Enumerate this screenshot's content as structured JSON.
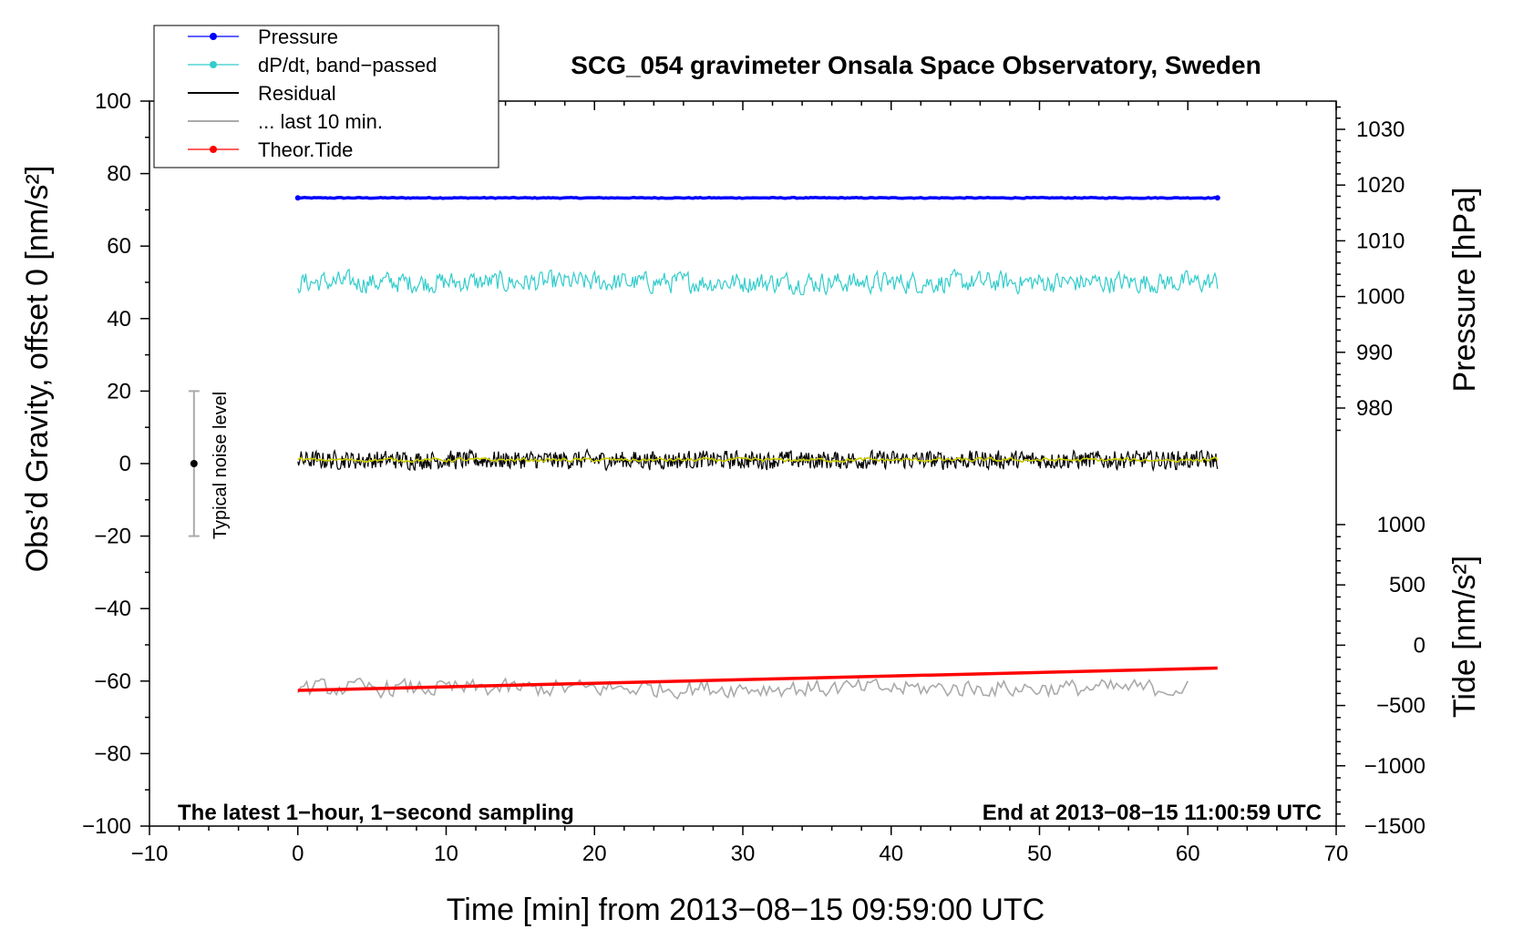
{
  "chart_data": {
    "type": "line",
    "title": "SCG_054 gravimeter Onsala Space Observatory, Sweden",
    "xlabel": "Time [min] from 2013−08−15 09:59:00 UTC",
    "ylabel_left": "Obs’d Gravity, offset 0 [nm/s²]",
    "ylabel_pressure": "Pressure [hPa]",
    "ylabel_tide": "Tide [nm/s²]",
    "xlim": [
      -10,
      70
    ],
    "ylim": [
      -100,
      100
    ],
    "pressure_range": [
      975,
      1035
    ],
    "tide_range": [
      -1500,
      1000
    ],
    "grid": false,
    "legend_position": "top-left",
    "x_ticks": [
      "−10",
      "0",
      "10",
      "20",
      "30",
      "40",
      "50",
      "60",
      "70"
    ],
    "y_ticks": [
      "100",
      "80",
      "60",
      "40",
      "20",
      "0",
      "−20",
      "−40",
      "−60",
      "−80",
      "−100"
    ],
    "pressure_ticks": [
      "1030",
      "1020",
      "1010",
      "1000",
      "990",
      "980"
    ],
    "tide_ticks": [
      "1000",
      "500",
      "0",
      "−500",
      "−1000",
      "−1500"
    ],
    "legend": [
      {
        "label": "Pressure",
        "color": "#0000ff",
        "marker": true
      },
      {
        "label": "dP/dt, band−passed",
        "color": "#33cccc",
        "marker": true
      },
      {
        "label": "Residual",
        "color": "#000000",
        "marker": false
      },
      {
        "label": "... last 10 min.",
        "color": "#aaaaaa",
        "marker": false
      },
      {
        "label": "Theor.Tide",
        "color": "#ff0000",
        "marker": true
      }
    ],
    "series": [
      {
        "name": "Pressure",
        "x_range": [
          0,
          62
        ],
        "level": 1017.7,
        "unit": "hPa",
        "color": "#0000ff"
      },
      {
        "name": "dP/dt, band−passed",
        "x_range": [
          0,
          62
        ],
        "center": 50,
        "amplitude": 4,
        "color": "#33cccc"
      },
      {
        "name": "Residual",
        "x_range": [
          0,
          62
        ],
        "center": 1,
        "amplitude": 3,
        "color": "#000000",
        "smoothed_color": "#cccc00"
      },
      {
        "name": "... last 10 min.",
        "x_range": [
          0,
          60
        ],
        "center": -62,
        "amplitude": 2,
        "color": "#aaaaaa"
      },
      {
        "name": "Theor.Tide",
        "x_range": [
          0,
          62
        ],
        "tide_start": -375,
        "tide_end": -190,
        "unit": "nm/s²",
        "color": "#ff0000"
      }
    ],
    "annotations": {
      "bottom_left": "The latest 1−hour, 1−second sampling",
      "bottom_right": "End at 2013−08−15 11:00:59 UTC",
      "noise_label": "Typical noise level",
      "noise_center": 0,
      "noise_halfwidth": 20,
      "noise_x": -7
    }
  }
}
